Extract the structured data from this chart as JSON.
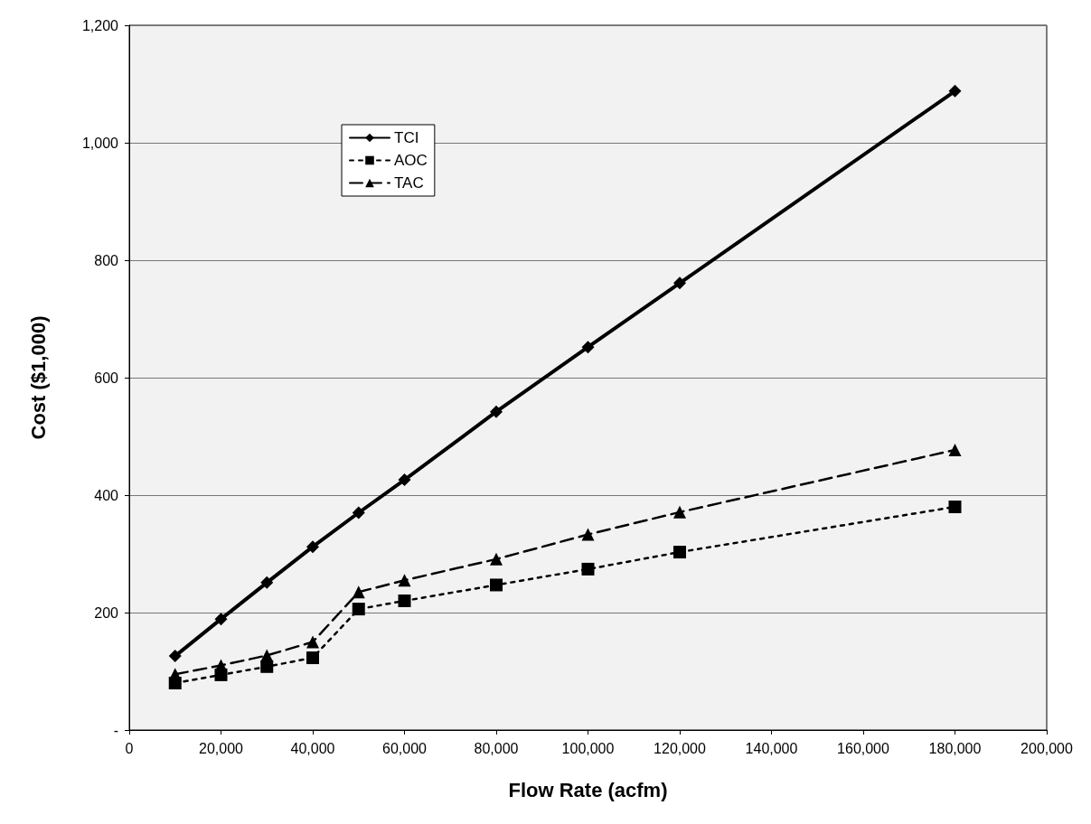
{
  "chart_data": {
    "type": "line",
    "xlabel": "Flow Rate (acfm)",
    "ylabel": "Cost ($1,000)",
    "x": [
      10000,
      20000,
      30000,
      40000,
      50000,
      60000,
      80000,
      100000,
      120000,
      180000
    ],
    "series": [
      {
        "name": "TCI",
        "color": "#000000",
        "marker": "diamond",
        "line_style": "solid",
        "values": [
          126,
          189,
          251,
          312,
          370,
          426,
          542,
          652,
          761,
          1088
        ]
      },
      {
        "name": "AOC",
        "color": "#000000",
        "marker": "square",
        "line_style": "dotted",
        "values": [
          80,
          94,
          108,
          123,
          206,
          220,
          247,
          274,
          303,
          380
        ]
      },
      {
        "name": "TAC",
        "color": "#000000",
        "marker": "triangle",
        "line_style": "dashed",
        "values": [
          95,
          110,
          127,
          150,
          235,
          255,
          291,
          333,
          371,
          477
        ]
      }
    ],
    "xlim": [
      0,
      200000
    ],
    "xticks": [
      {
        "value": 0,
        "label": "0"
      },
      {
        "value": 20000,
        "label": "20,000"
      },
      {
        "value": 40000,
        "label": "40,000"
      },
      {
        "value": 60000,
        "label": "60,000"
      },
      {
        "value": 80000,
        "label": "80,000"
      },
      {
        "value": 100000,
        "label": "100,000"
      },
      {
        "value": 120000,
        "label": "120,000"
      },
      {
        "value": 140000,
        "label": "140,000"
      },
      {
        "value": 160000,
        "label": "160,000"
      },
      {
        "value": 180000,
        "label": "180,000"
      },
      {
        "value": 200000,
        "label": "200,000"
      }
    ],
    "ylim": [
      0,
      1200
    ],
    "yticks": [
      {
        "value": 0,
        "label": "-"
      },
      {
        "value": 200,
        "label": "200"
      },
      {
        "value": 400,
        "label": "400"
      },
      {
        "value": 600,
        "label": "600"
      },
      {
        "value": 800,
        "label": "800"
      },
      {
        "value": 1000,
        "label": "1,000"
      },
      {
        "value": 1200,
        "label": "1,200"
      }
    ],
    "grid": "y",
    "legend": "top left"
  }
}
